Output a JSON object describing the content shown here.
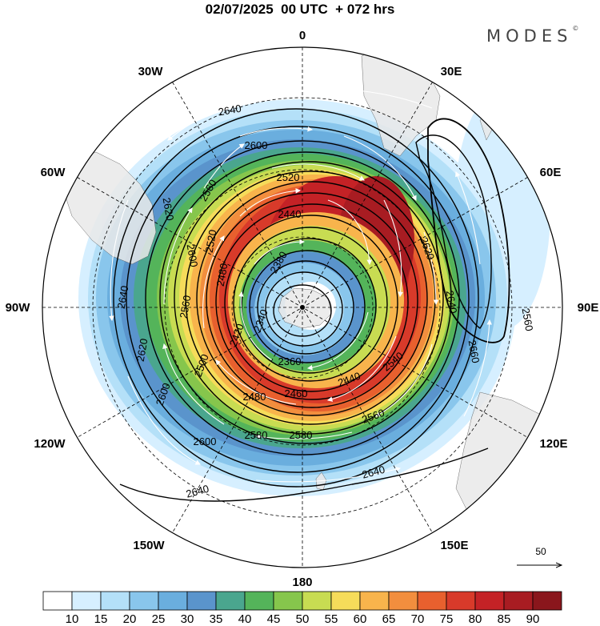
{
  "title": "02/07/2025  00 UTC  + 072 hrs",
  "brand": "MODES",
  "brand_mark": "©",
  "longitude_labels": {
    "lon_0": "0",
    "lon_30e": "30E",
    "lon_60e": "60E",
    "lon_90e": "90E",
    "lon_120e": "120E",
    "lon_150e": "150E",
    "lon_180": "180",
    "lon_150w": "150W",
    "lon_120w": "120W",
    "lon_90w": "90W",
    "lon_60w": "60W",
    "lon_30w": "30W"
  },
  "contour_labels": {
    "c2640_top": "2640",
    "c2600_top": "2600",
    "c2520_top": "2520",
    "c2560_ul": "2560",
    "c2440_top": "2440",
    "c2620_right": "2620",
    "c2380": "2380",
    "c2340": "2340",
    "c2360": "2360",
    "c2620_left": "2620",
    "c2600_left": "2600",
    "c2520_left": "2520",
    "c2480_left": "2480",
    "c2560_left": "2560",
    "c2640_left": "2640",
    "c2620_left_outer": "2620",
    "c2600_lower_left": "2600",
    "c2500_lower": "2500",
    "c2420_lower": "2420",
    "c2480_lower": "2480",
    "c2460_lower": "2460",
    "c2440_lower": "2440",
    "c2540_lower": "2540",
    "c2560_lower": "2560",
    "c2580_a": "2580",
    "c2580_b": "2580",
    "c2600_bottom": "2600",
    "c2640_right": "2640",
    "c2560_far_right": "2560",
    "c2660_right": "2660",
    "c2640_bottom_r": "2640",
    "c2640_bottom_l": "2640"
  },
  "vector_reference": {
    "value": "50"
  },
  "colorbar": {
    "ticks": [
      "10",
      "15",
      "20",
      "25",
      "30",
      "35",
      "40",
      "45",
      "50",
      "55",
      "60",
      "65",
      "70",
      "75",
      "80",
      "85",
      "90"
    ],
    "colors": [
      "#ffffff",
      "#d6efff",
      "#b4e0f8",
      "#89c6ec",
      "#6aaede",
      "#5a94cc",
      "#4aa68e",
      "#54b45a",
      "#86c64c",
      "#c8dc52",
      "#f6dc5a",
      "#f8b44c",
      "#f28e3e",
      "#e8602e",
      "#d83a2a",
      "#c42226",
      "#a81c22",
      "#8a161c"
    ]
  }
}
